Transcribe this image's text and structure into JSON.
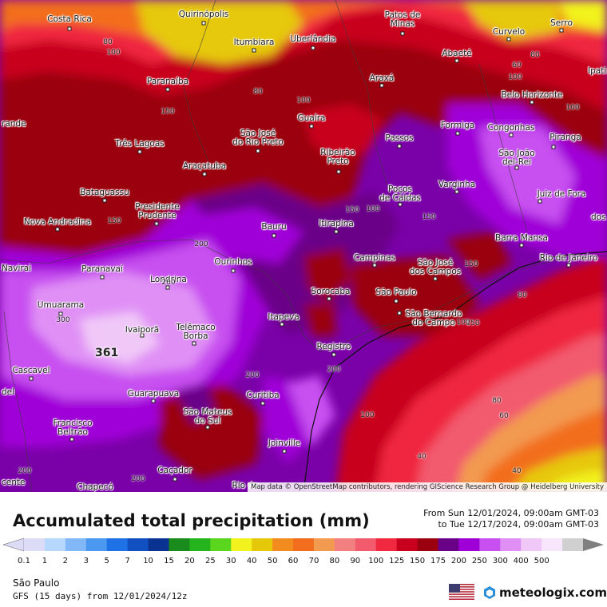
{
  "map": {
    "cities": [
      {
        "name": "Costa Rica"
      },
      {
        "name": "Quirinópolis"
      },
      {
        "name": "Itumbiara"
      },
      {
        "name": "Uberlândia"
      },
      {
        "name": "Patos de\nMinas"
      },
      {
        "name": "Curvelo"
      },
      {
        "name": "Serro"
      },
      {
        "name": "Ipati"
      },
      {
        "name": "Abaeté"
      },
      {
        "name": "Paranaíba"
      },
      {
        "name": "Araxá"
      },
      {
        "name": "Belo Horizonte"
      },
      {
        "name": "rande"
      },
      {
        "name": "Guaíra"
      },
      {
        "name": "São José\ndo Rio Preto"
      },
      {
        "name": "Formiga"
      },
      {
        "name": "Congonhas"
      },
      {
        "name": "Três Lagoas"
      },
      {
        "name": "Passos"
      },
      {
        "name": "Piranga"
      },
      {
        "name": "Ribeirão\nPreto"
      },
      {
        "name": "São João\ndel-Rei"
      },
      {
        "name": "Araçatuba"
      },
      {
        "name": "Varginha"
      },
      {
        "name": "Bataguassu"
      },
      {
        "name": "Poços\nde Caldas"
      },
      {
        "name": "Juiz de Fora"
      },
      {
        "name": "Presidente\nPrudente"
      },
      {
        "name": "Nova Andradina"
      },
      {
        "name": "Itirapina"
      },
      {
        "name": "Bauru"
      },
      {
        "name": "dos"
      },
      {
        "name": "Barra Mansa"
      },
      {
        "name": "Navirai"
      },
      {
        "name": "Paranavaí"
      },
      {
        "name": "Ourinhos"
      },
      {
        "name": "Campinas"
      },
      {
        "name": "São José\ndos Campos"
      },
      {
        "name": "Rio de Janeiro"
      },
      {
        "name": "Londrina"
      },
      {
        "name": "Sorocaba"
      },
      {
        "name": "São Paulo"
      },
      {
        "name": "Umuarama"
      },
      {
        "name": "São Bernardo\ndo Campo"
      },
      {
        "name": "Itapeva"
      },
      {
        "name": "Ivaiporã"
      },
      {
        "name": "Telêmaco\nBorba"
      },
      {
        "name": "Registro"
      },
      {
        "name": "Cascavel"
      },
      {
        "name": "del"
      },
      {
        "name": "Guarapuava"
      },
      {
        "name": "Curitiba"
      },
      {
        "name": "São Mateus\ndo Sul"
      },
      {
        "name": "Francisco\nBeltrão"
      },
      {
        "name": "Joinville"
      },
      {
        "name": "Caçador"
      },
      {
        "name": "cente"
      },
      {
        "name": "Chapecó"
      },
      {
        "name": "Rio do"
      }
    ],
    "contour_labels": [
      "80",
      "100",
      "80",
      "100",
      "60",
      "100",
      "80",
      "100",
      "150",
      "150",
      "150",
      "100",
      "150",
      "150",
      "200",
      "200",
      "300",
      "200",
      "200",
      "150",
      "80",
      "100",
      "100",
      "80",
      "60",
      "40",
      "40",
      "200",
      "200"
    ],
    "max_label": "361",
    "attribution": "Map data © OpenStreetMap contributors, rendering GIScience Research Group @ Heidelberg University"
  },
  "legend": {
    "title": "Accumulated total precipitation (mm)",
    "period_from": "From Sun 12/01/2024, 09:00am GMT-03",
    "period_to": "to Tue 12/17/2024, 09:00am GMT-03",
    "ticks": [
      "0.1",
      "1",
      "2",
      "3",
      "5",
      "7",
      "10",
      "15",
      "20",
      "25",
      "30",
      "40",
      "50",
      "60",
      "70",
      "80",
      "90",
      "100",
      "125",
      "150",
      "175",
      "200",
      "250",
      "300",
      "400",
      "500"
    ],
    "colors": [
      "#dcdcf6",
      "#b6d8fc",
      "#82b8f8",
      "#4a98f0",
      "#1e72e6",
      "#1050c0",
      "#0a3290",
      "#1a8c1e",
      "#26b41e",
      "#5ad61e",
      "#f2f21e",
      "#e6c80a",
      "#f28c1e",
      "#f26e1e",
      "#f29a50",
      "#f28080",
      "#f25a6e",
      "#f02840",
      "#c8001e",
      "#9a0010",
      "#6a0088",
      "#a000d8",
      "#c850f0",
      "#e090f5",
      "#f0c8f8",
      "#f8e6fc",
      "#d0d0d0"
    ]
  },
  "footer": {
    "region": "São Paulo",
    "model_run": "GFS (15 days) from 12/01/2024/12z",
    "brand": "meteologix.com",
    "flag_icon": "us-flag-icon",
    "brand_icon": "meteologix-logo-icon"
  }
}
